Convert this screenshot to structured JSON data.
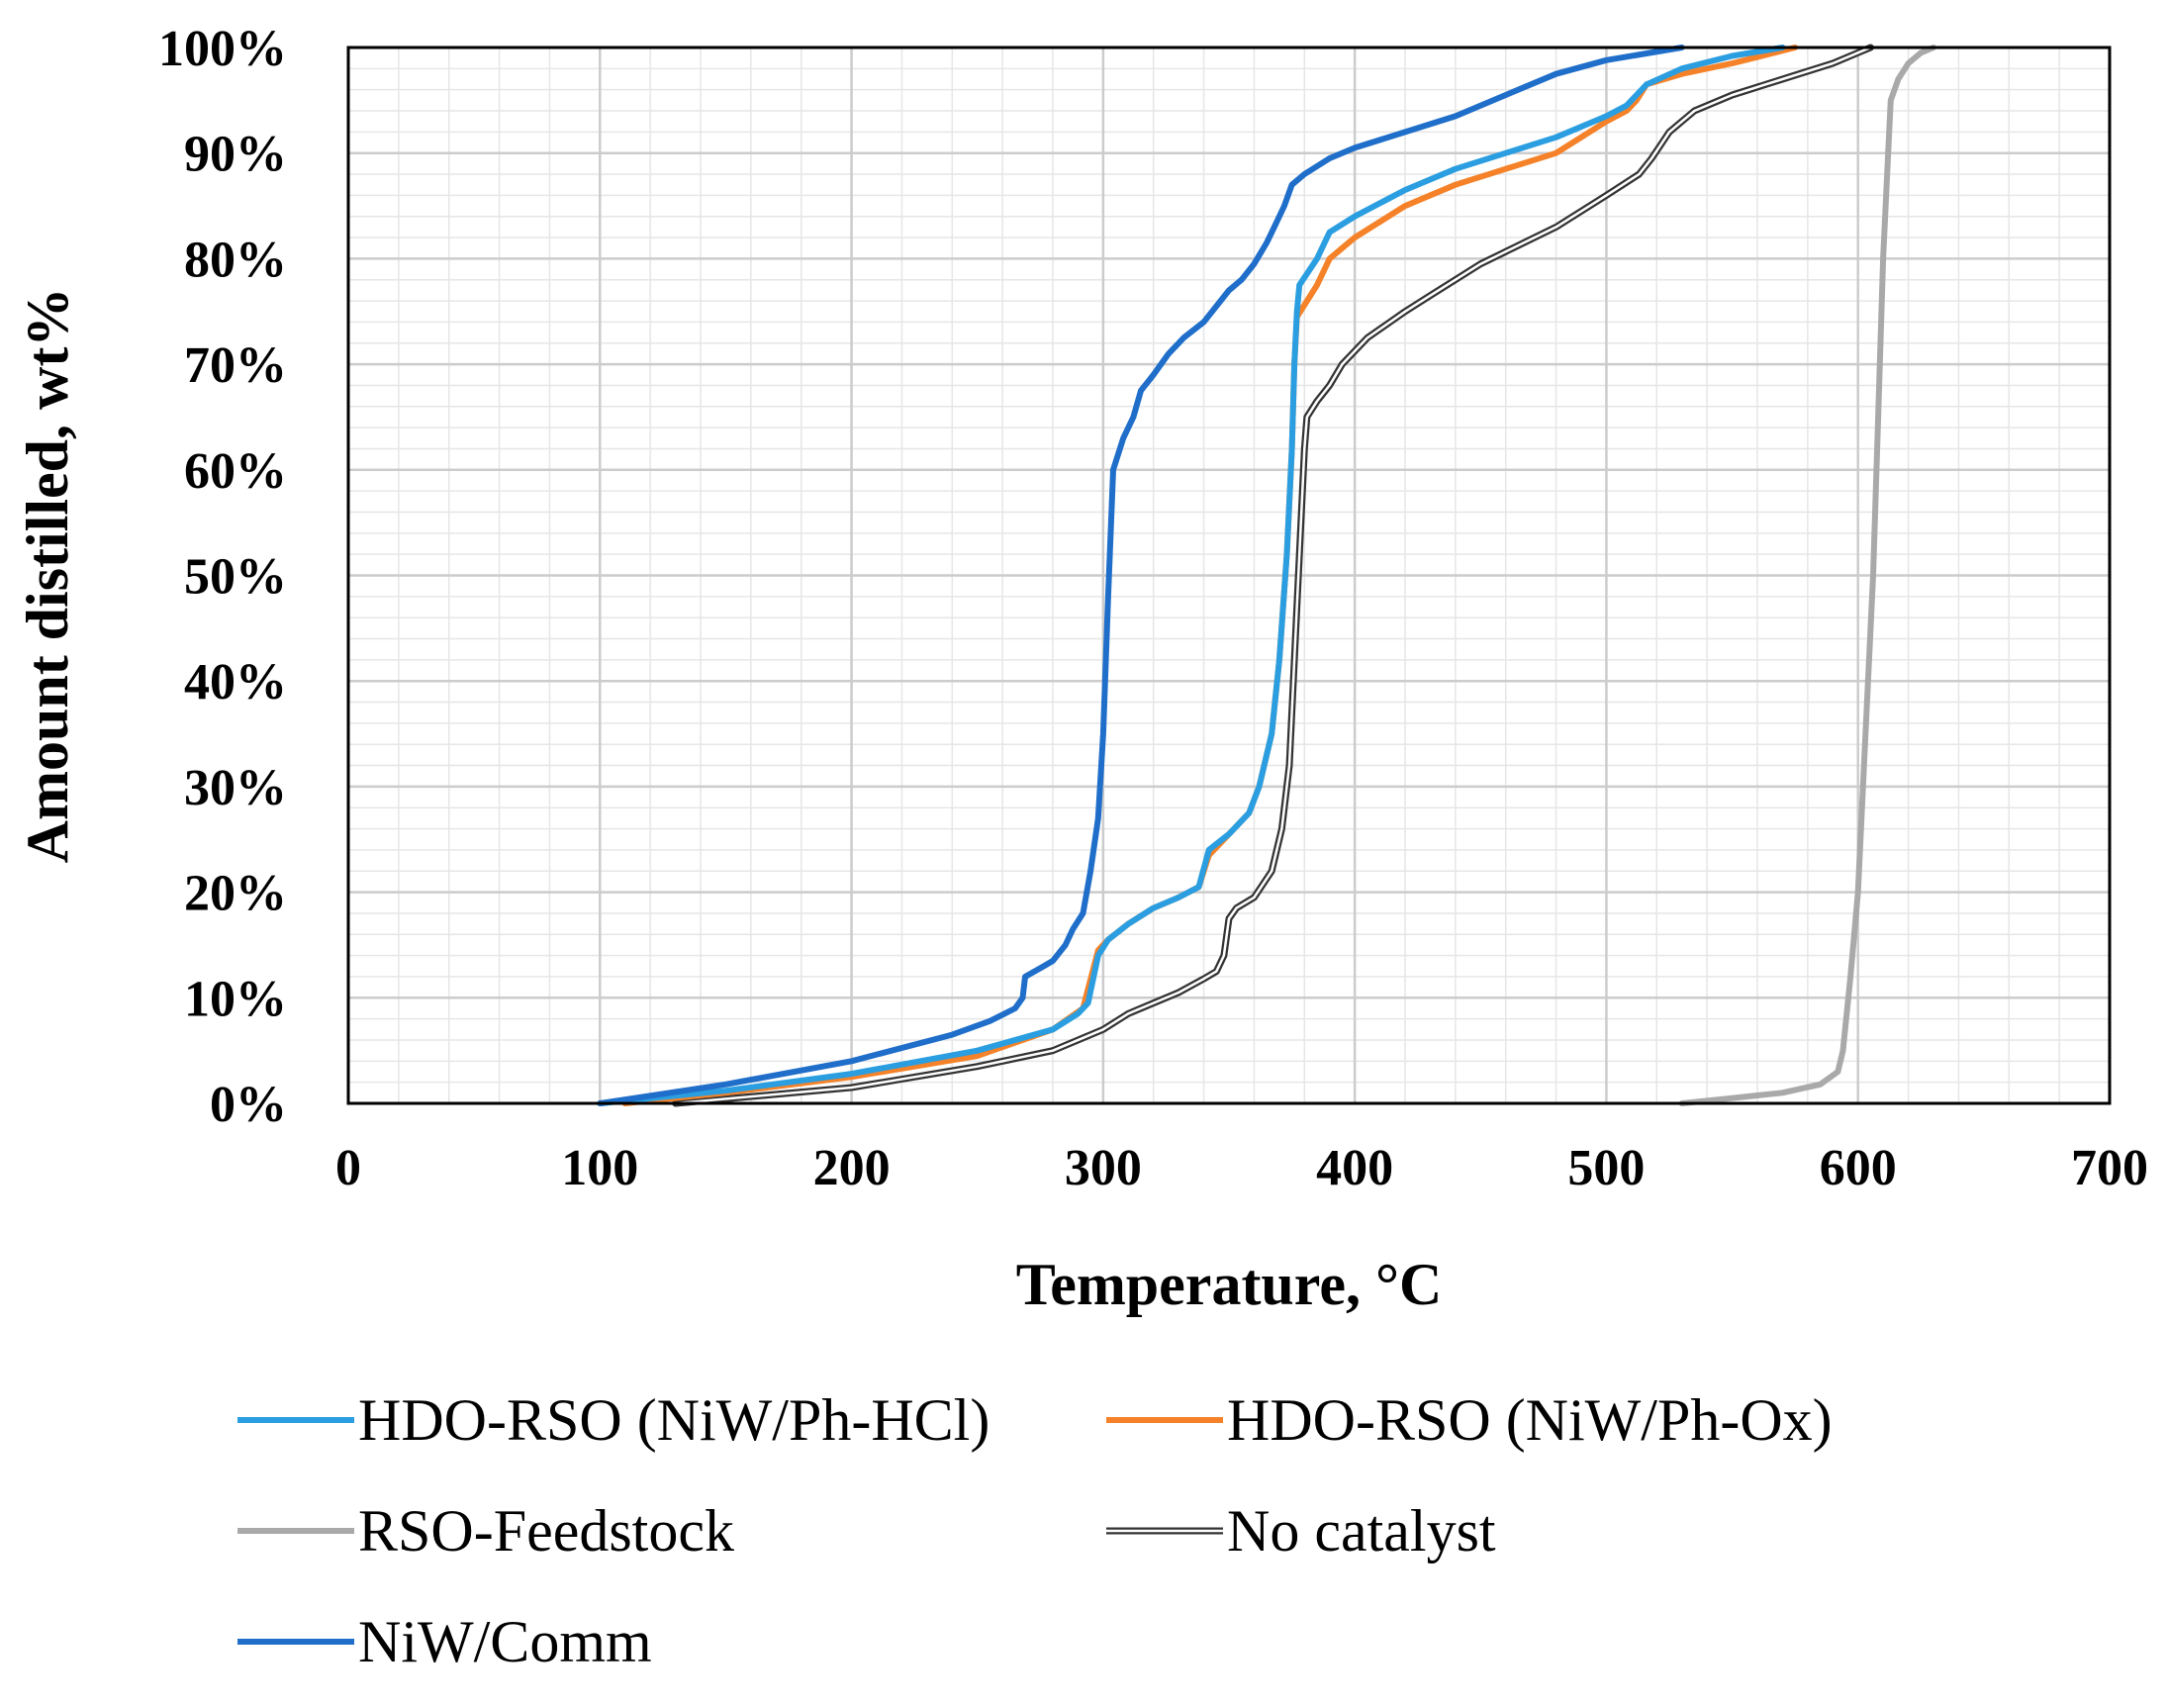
{
  "chart_data": {
    "type": "line",
    "title": "",
    "xlabel": "Temperature, °C",
    "ylabel": "Amount distilled, wt%",
    "xlim": [
      0,
      700
    ],
    "ylim": [
      0,
      100
    ],
    "x_ticks": [
      0,
      100,
      200,
      300,
      400,
      500,
      600,
      700
    ],
    "x_tick_labels": [
      "0",
      "100",
      "200",
      "300",
      "400",
      "500",
      "600",
      "700"
    ],
    "y_ticks": [
      0,
      10,
      20,
      30,
      40,
      50,
      60,
      70,
      80,
      90,
      100
    ],
    "y_tick_labels": [
      "0%",
      "10%",
      "20%",
      "30%",
      "40%",
      "50%",
      "60%",
      "70%",
      "80%",
      "90%",
      "100%"
    ],
    "grid": true,
    "legend_position": "bottom",
    "series": [
      {
        "name": "HDO-RSO (NiW/Ph-HCl)",
        "color": "#2a9ee0",
        "style": "solid",
        "points": [
          [
            100,
            0
          ],
          [
            150,
            1.2
          ],
          [
            200,
            2.8
          ],
          [
            250,
            5
          ],
          [
            280,
            7
          ],
          [
            290,
            8.5
          ],
          [
            294,
            9.5
          ],
          [
            298,
            14
          ],
          [
            302,
            15.5
          ],
          [
            310,
            17
          ],
          [
            320,
            18.5
          ],
          [
            330,
            19.5
          ],
          [
            338,
            20.5
          ],
          [
            342,
            24
          ],
          [
            350,
            25.5
          ],
          [
            358,
            27.5
          ],
          [
            362,
            30
          ],
          [
            367,
            35
          ],
          [
            370,
            42
          ],
          [
            373,
            52
          ],
          [
            375,
            62
          ],
          [
            376,
            70
          ],
          [
            377,
            75
          ],
          [
            378,
            77.5
          ],
          [
            385,
            80
          ],
          [
            390,
            82.5
          ],
          [
            400,
            84
          ],
          [
            420,
            86.5
          ],
          [
            440,
            88.5
          ],
          [
            460,
            90
          ],
          [
            480,
            91.5
          ],
          [
            500,
            93.5
          ],
          [
            508,
            94.5
          ],
          [
            512,
            95.5
          ],
          [
            516,
            96.5
          ],
          [
            530,
            98
          ],
          [
            550,
            99.2
          ],
          [
            570,
            100
          ]
        ]
      },
      {
        "name": "HDO-RSO (NiW/Ph-Ox)",
        "color": "#f58228",
        "style": "solid",
        "points": [
          [
            110,
            0
          ],
          [
            150,
            1
          ],
          [
            200,
            2.5
          ],
          [
            250,
            4.5
          ],
          [
            280,
            7
          ],
          [
            292,
            9
          ],
          [
            298,
            14.5
          ],
          [
            302,
            15.5
          ],
          [
            310,
            17
          ],
          [
            320,
            18.5
          ],
          [
            330,
            19.5
          ],
          [
            338,
            20.5
          ],
          [
            342,
            23.5
          ],
          [
            350,
            25.5
          ],
          [
            358,
            27.5
          ],
          [
            362,
            30
          ],
          [
            367,
            35
          ],
          [
            370,
            42
          ],
          [
            373,
            52
          ],
          [
            375,
            62
          ],
          [
            376,
            70
          ],
          [
            377,
            74.5
          ],
          [
            385,
            77.5
          ],
          [
            390,
            80
          ],
          [
            400,
            82
          ],
          [
            420,
            85
          ],
          [
            440,
            87
          ],
          [
            460,
            88.5
          ],
          [
            480,
            90
          ],
          [
            500,
            93
          ],
          [
            508,
            94
          ],
          [
            512,
            95
          ],
          [
            516,
            96.5
          ],
          [
            530,
            97.5
          ],
          [
            550,
            98.5
          ],
          [
            575,
            100
          ]
        ]
      },
      {
        "name": "RSO-Feedstock",
        "color": "#a9a9a9",
        "style": "solid",
        "points": [
          [
            530,
            0
          ],
          [
            550,
            0.5
          ],
          [
            570,
            1
          ],
          [
            585,
            1.8
          ],
          [
            592,
            3
          ],
          [
            594,
            5
          ],
          [
            597,
            12
          ],
          [
            600,
            20
          ],
          [
            603,
            35
          ],
          [
            606,
            50
          ],
          [
            608,
            65
          ],
          [
            610,
            80
          ],
          [
            612,
            90
          ],
          [
            613,
            95
          ],
          [
            616,
            97
          ],
          [
            620,
            98.5
          ],
          [
            625,
            99.5
          ],
          [
            630,
            100
          ]
        ]
      },
      {
        "name": "No catalyst",
        "color": "#333333",
        "style": "double",
        "points": [
          [
            130,
            0
          ],
          [
            200,
            1.5
          ],
          [
            250,
            3.5
          ],
          [
            280,
            5
          ],
          [
            300,
            7
          ],
          [
            310,
            8.5
          ],
          [
            320,
            9.5
          ],
          [
            330,
            10.5
          ],
          [
            340,
            11.8
          ],
          [
            345,
            12.5
          ],
          [
            348,
            14
          ],
          [
            350,
            17.5
          ],
          [
            353,
            18.5
          ],
          [
            360,
            19.5
          ],
          [
            367,
            22
          ],
          [
            371,
            26
          ],
          [
            374,
            32
          ],
          [
            376,
            42
          ],
          [
            378,
            52
          ],
          [
            380,
            62
          ],
          [
            381,
            65
          ],
          [
            385,
            66.5
          ],
          [
            390,
            68
          ],
          [
            395,
            70
          ],
          [
            405,
            72.5
          ],
          [
            420,
            75
          ],
          [
            430,
            76.5
          ],
          [
            450,
            79.5
          ],
          [
            480,
            83
          ],
          [
            500,
            86
          ],
          [
            513,
            88
          ],
          [
            518,
            89.5
          ],
          [
            525,
            92
          ],
          [
            535,
            94
          ],
          [
            550,
            95.5
          ],
          [
            570,
            97
          ],
          [
            590,
            98.5
          ],
          [
            600,
            99.5
          ],
          [
            605,
            100
          ]
        ]
      },
      {
        "name": "NiW/Comm",
        "color": "#1f6ec9",
        "style": "solid",
        "points": [
          [
            100,
            0
          ],
          [
            150,
            1.8
          ],
          [
            200,
            4
          ],
          [
            240,
            6.5
          ],
          [
            255,
            7.8
          ],
          [
            265,
            9
          ],
          [
            268,
            10
          ],
          [
            269,
            12
          ],
          [
            275,
            12.8
          ],
          [
            280,
            13.5
          ],
          [
            285,
            15
          ],
          [
            288,
            16.5
          ],
          [
            292,
            18
          ],
          [
            295,
            22
          ],
          [
            298,
            27
          ],
          [
            300,
            35
          ],
          [
            302,
            48
          ],
          [
            304,
            60
          ],
          [
            308,
            63
          ],
          [
            312,
            65
          ],
          [
            315,
            67.5
          ],
          [
            320,
            69
          ],
          [
            326,
            71
          ],
          [
            332,
            72.5
          ],
          [
            340,
            74
          ],
          [
            345,
            75.5
          ],
          [
            350,
            77
          ],
          [
            355,
            78
          ],
          [
            360,
            79.5
          ],
          [
            365,
            81.5
          ],
          [
            368,
            83
          ],
          [
            372,
            85
          ],
          [
            375,
            87
          ],
          [
            380,
            88
          ],
          [
            390,
            89.5
          ],
          [
            400,
            90.5
          ],
          [
            420,
            92
          ],
          [
            440,
            93.5
          ],
          [
            460,
            95.5
          ],
          [
            480,
            97.5
          ],
          [
            500,
            98.8
          ],
          [
            530,
            100
          ]
        ]
      }
    ]
  }
}
